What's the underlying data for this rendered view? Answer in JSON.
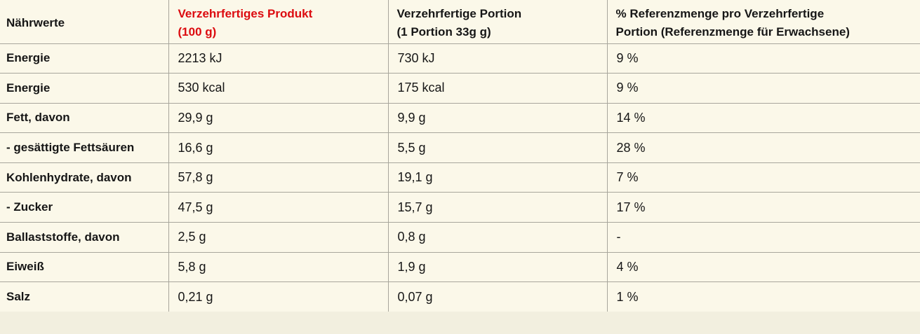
{
  "table": {
    "title_semantics": "nutrition-facts-table",
    "header": {
      "col1": "Nährwerte",
      "col2_line1": "Verzehrfertiges Produkt",
      "col2_line2": "(100 g)",
      "col3_line1": "Verzehrfertige Portion",
      "col3_line2": "(1 Portion 33g g)",
      "col4_line1": "% Referenzmenge pro Verzehrfertige",
      "col4_line2": "Portion (Referenzmenge für Erwachsene)"
    },
    "rows": [
      {
        "label": "Energie",
        "per100": "2213 kJ",
        "portion": "730 kJ",
        "ref": "9 %"
      },
      {
        "label": "Energie",
        "per100": "530 kcal",
        "portion": "175 kcal",
        "ref": "9 %"
      },
      {
        "label": "Fett, davon",
        "per100": "29,9 g",
        "portion": "9,9 g",
        "ref": "14 %"
      },
      {
        "label": "- gesättigte Fettsäuren",
        "per100": "16,6 g",
        "portion": "5,5 g",
        "ref": "28 %"
      },
      {
        "label": "Kohlenhydrate, davon",
        "per100": "57,8 g",
        "portion": "19,1 g",
        "ref": "7 %"
      },
      {
        "label": "- Zucker",
        "per100": "47,5 g",
        "portion": "15,7 g",
        "ref": "17 %"
      },
      {
        "label": "Ballaststoffe, davon",
        "per100": "2,5 g",
        "portion": "0,8 g",
        "ref": "-"
      },
      {
        "label": "Eiweiß",
        "per100": "5,8 g",
        "portion": "1,9 g",
        "ref": "4 %"
      },
      {
        "label": "Salz",
        "per100": "0,21 g",
        "portion": "0,07 g",
        "ref": "1 %"
      }
    ],
    "colors": {
      "accent_red": "#dc0b0f",
      "cell_background": "#fbf8e9",
      "page_background": "#f2efdf",
      "grid_line": "#a8a69c",
      "text": "#161616"
    }
  }
}
